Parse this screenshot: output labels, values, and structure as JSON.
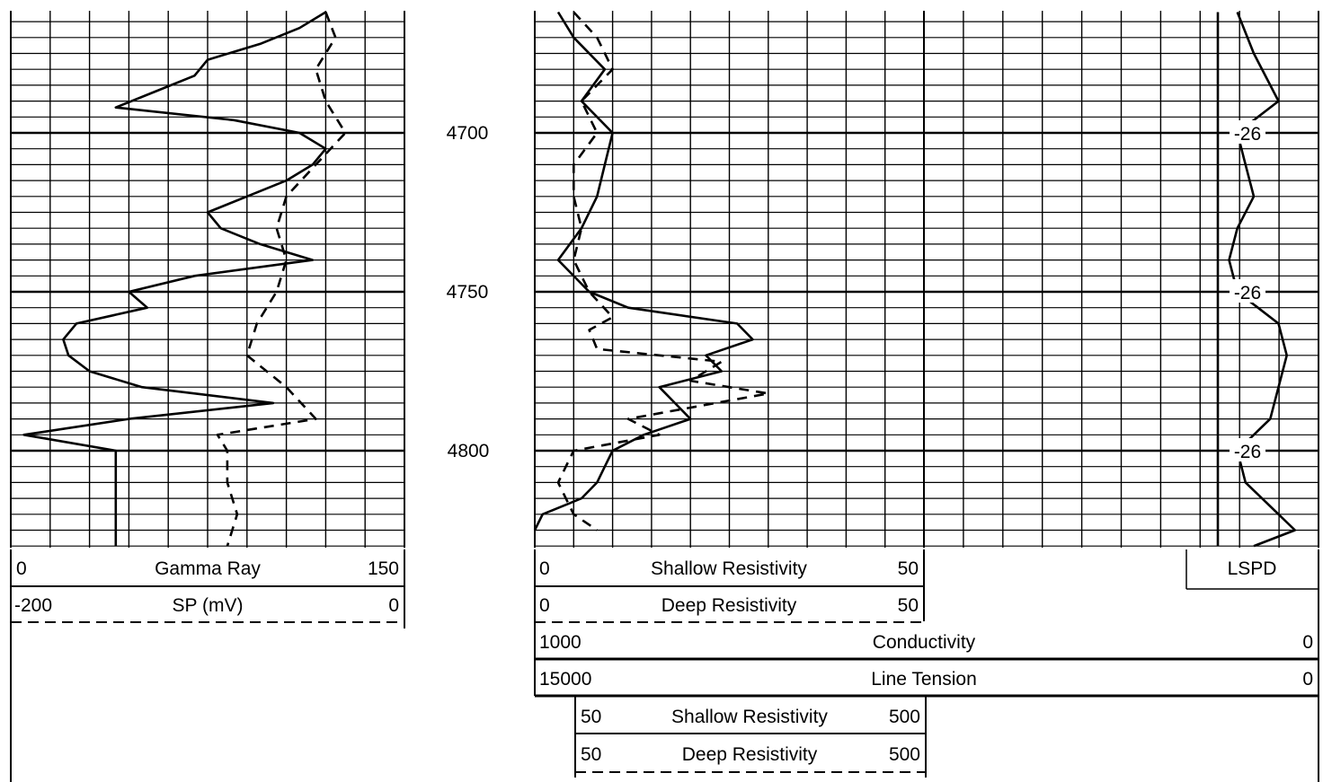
{
  "chart_data": {
    "type": "line",
    "depth_labels": [
      "4700",
      "4750",
      "4800"
    ],
    "track1": {
      "curves": [
        {
          "name": "Gamma Ray",
          "min": "0",
          "max": "150",
          "style": "solid"
        },
        {
          "name": "SP (mV)",
          "min": "-200",
          "max": "0",
          "style": "dashed"
        }
      ]
    },
    "track2": {
      "curves": [
        {
          "name": "Shallow Resistivity",
          "min": "0",
          "max": "50",
          "style": "solid"
        },
        {
          "name": "Deep Resistivity",
          "min": "0",
          "max": "50",
          "style": "dashed"
        },
        {
          "name": "Conductivity",
          "min": "1000",
          "max": "0",
          "style": "solid"
        },
        {
          "name": "Line Tension",
          "min": "15000",
          "max": "0",
          "style": "solid"
        },
        {
          "name": "Shallow Resistivity",
          "min": "50",
          "max": "500",
          "style": "solid"
        },
        {
          "name": "Deep Resistivity",
          "min": "50",
          "max": "500",
          "style": "dashed"
        }
      ]
    },
    "track3": {
      "curves": [
        {
          "name": "LSPD",
          "style": "solid"
        }
      ],
      "annotations": [
        "-26",
        "-26",
        "-26"
      ]
    },
    "gamma_ray": {
      "depth": [
        4662,
        4667,
        4672,
        4677,
        4682,
        4687,
        4692,
        4696,
        4700,
        4705,
        4710,
        4715,
        4720,
        4725,
        4730,
        4735,
        4740,
        4745,
        4750,
        4755,
        4760,
        4765,
        4770,
        4775,
        4780,
        4785,
        4790,
        4795,
        4800,
        4805,
        4810,
        4815,
        4820,
        4825,
        4830
      ],
      "value": [
        120,
        110,
        95,
        75,
        70,
        55,
        40,
        85,
        110,
        120,
        115,
        105,
        90,
        75,
        80,
        95,
        115,
        70,
        45,
        52,
        25,
        20,
        22,
        30,
        50,
        100,
        45,
        5,
        40,
        40,
        40,
        40,
        40,
        40,
        40
      ]
    },
    "sp": {
      "depth": [
        4662,
        4670,
        4680,
        4690,
        4700,
        4710,
        4720,
        4730,
        4740,
        4750,
        4760,
        4770,
        4780,
        4790,
        4795,
        4800,
        4810,
        4820,
        4830
      ],
      "value": [
        -40,
        -35,
        -45,
        -40,
        -30,
        -45,
        -60,
        -65,
        -60,
        -65,
        -75,
        -80,
        -60,
        -45,
        -95,
        -90,
        -90,
        -85,
        -90
      ]
    },
    "shallow_resistivity": {
      "depth": [
        4662,
        4670,
        4680,
        4690,
        4700,
        4710,
        4720,
        4730,
        4740,
        4750,
        4755,
        4760,
        4765,
        4770,
        4775,
        4780,
        4785,
        4790,
        4795,
        4800,
        4805,
        4810,
        4815,
        4820,
        4825
      ],
      "value": [
        3,
        5,
        9,
        6,
        10,
        9,
        8,
        6,
        3,
        7,
        12,
        26,
        28,
        22,
        24,
        16,
        18,
        20,
        14,
        10,
        9,
        8,
        6,
        1,
        0
      ]
    },
    "deep_resistivity": {
      "depth": [
        4662,
        4670,
        4680,
        4690,
        4700,
        4710,
        4720,
        4730,
        4740,
        4750,
        4758,
        4762,
        4768,
        4772,
        4778,
        4782,
        4790,
        4795,
        4800,
        4805,
        4810,
        4815,
        4820,
        4825
      ],
      "value": [
        5,
        8,
        10,
        6,
        8,
        5,
        5,
        6,
        5,
        7,
        10,
        7,
        8,
        24,
        20,
        30,
        12,
        16,
        5,
        4,
        3,
        4,
        5,
        8
      ]
    },
    "lspd": {
      "depth": [
        4662,
        4675,
        4690,
        4700,
        4710,
        4720,
        4730,
        4740,
        4750,
        4760,
        4770,
        4780,
        4790,
        4800,
        4810,
        4820,
        4825,
        4830
      ],
      "value": [
        -26,
        -24,
        -21,
        -26,
        -25,
        -24,
        -26,
        -27,
        -26,
        -21,
        -20,
        -21,
        -22,
        -26,
        -25,
        -21,
        -19,
        -24
      ]
    }
  }
}
